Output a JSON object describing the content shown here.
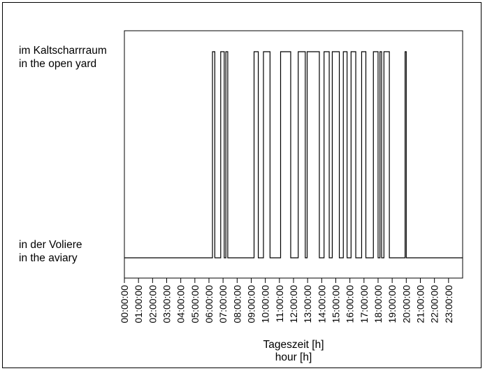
{
  "chart_data": {
    "type": "line",
    "step": true,
    "title": "",
    "xlabel": [
      "Tageszeit [h]",
      "hour [h]"
    ],
    "ylabel": "",
    "states": [
      {
        "name": "in der Voliere / in the aviary",
        "value": 0,
        "label": [
          "in der Voliere",
          "in the aviary"
        ]
      },
      {
        "name": "im Kaltscharrraum / in the open yard",
        "value": 1,
        "label": [
          "im Kaltscharrraum",
          "in the open yard"
        ]
      }
    ],
    "xlim": [
      0,
      24
    ],
    "x_tick_labels": [
      "00:00:00",
      "01:00:00",
      "02:00:00",
      "03:00:00",
      "04:00:00",
      "05:00:00",
      "06:00:00",
      "07:00:00",
      "08:00:00",
      "09:00:00",
      "10:00:00",
      "11:00:00",
      "12:00:00",
      "13:00:00",
      "14:00:00",
      "15:00:00",
      "16:00:00",
      "17:00:00",
      "18:00:00",
      "19:00:00",
      "20:00:00",
      "21:00:00",
      "22:00:00",
      "23:00:00"
    ],
    "grid": false,
    "intervals_in_open_yard": [
      [
        "06:15",
        "06:25"
      ],
      [
        "06:50",
        "07:05"
      ],
      [
        "07:12",
        "07:20"
      ],
      [
        "09:12",
        "09:30"
      ],
      [
        "09:52",
        "10:20"
      ],
      [
        "11:05",
        "11:48"
      ],
      [
        "12:20",
        "12:50"
      ],
      [
        "12:58",
        "13:50"
      ],
      [
        "14:10",
        "14:32"
      ],
      [
        "14:45",
        "15:15"
      ],
      [
        "15:32",
        "15:48"
      ],
      [
        "16:05",
        "16:25"
      ],
      [
        "16:50",
        "17:08"
      ],
      [
        "17:40",
        "18:00"
      ],
      [
        "18:08",
        "18:15"
      ],
      [
        "18:25",
        "18:48"
      ],
      [
        "19:55",
        "20:00"
      ]
    ]
  }
}
